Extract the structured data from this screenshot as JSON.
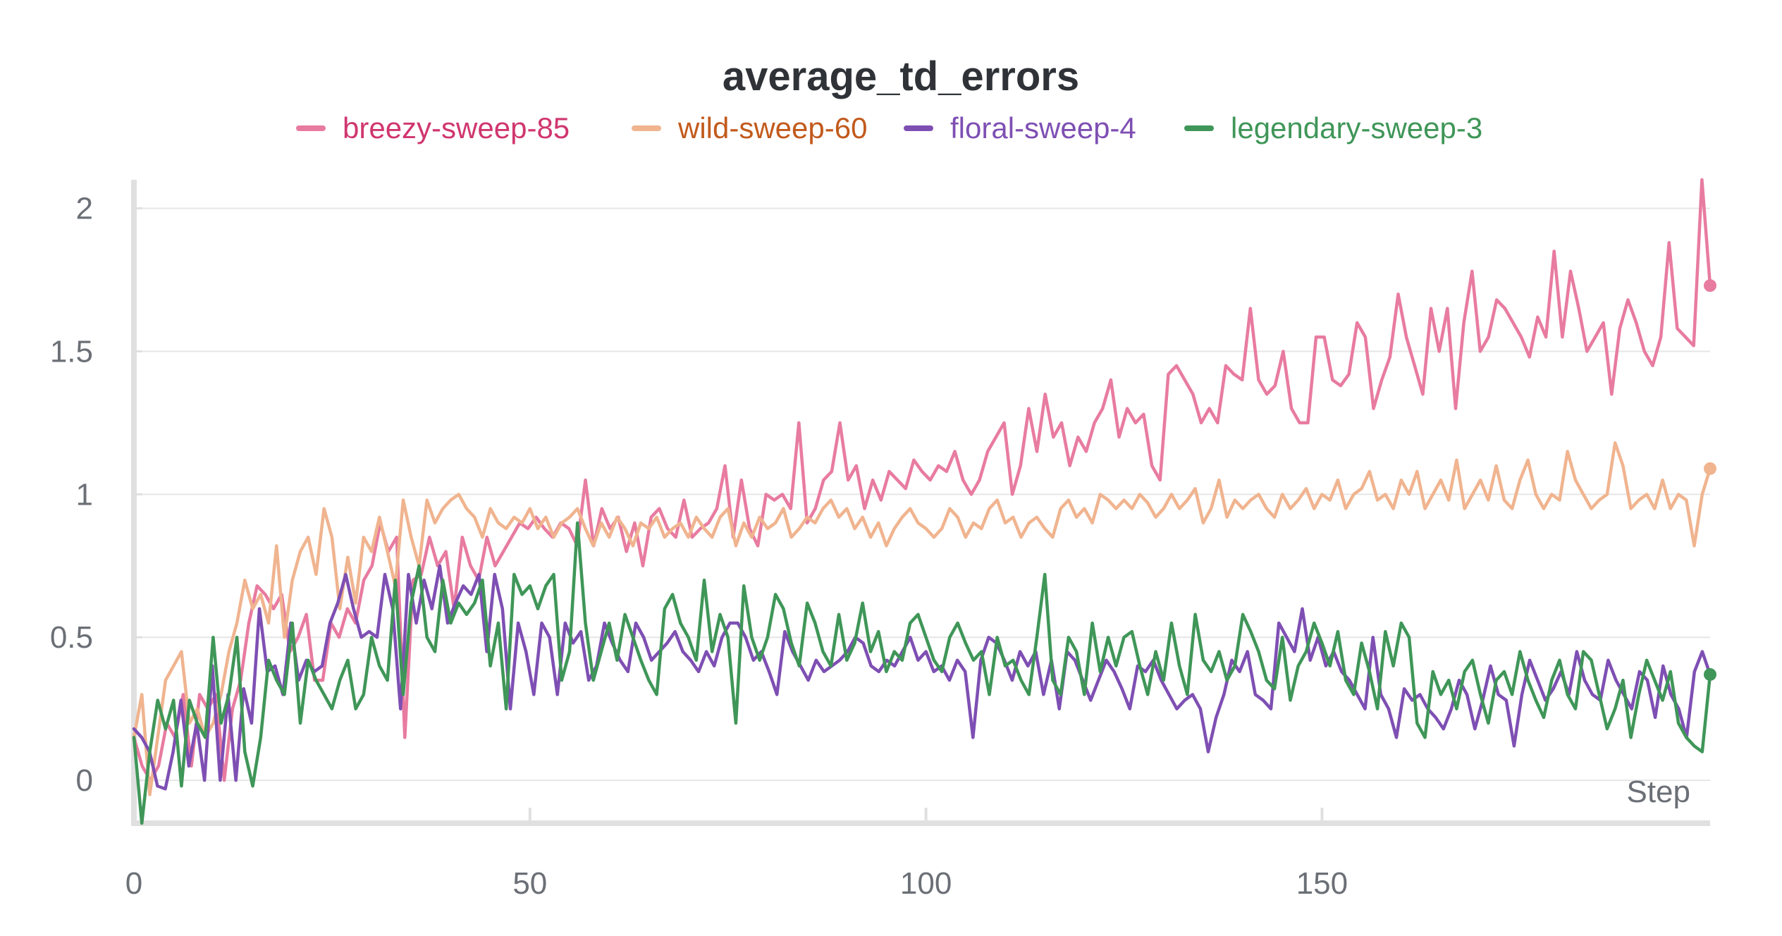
{
  "chart_data": {
    "type": "line",
    "title": "average_td_errors",
    "xlabel": "Step",
    "ylabel": "",
    "xlim": [
      0,
      199
    ],
    "ylim": [
      -0.15,
      2.1
    ],
    "x_ticks": [
      0,
      50,
      100,
      150
    ],
    "y_ticks": [
      0,
      0.5,
      1,
      1.5,
      2
    ],
    "x_tick_labels": [
      "0",
      "50",
      "100",
      "150"
    ],
    "y_tick_labels": [
      "0",
      "0.5",
      "1",
      "1.5",
      "2"
    ],
    "grid": true,
    "legend": "top-center",
    "series": [
      {
        "name": "breezy-sweep-85",
        "color": "#e87ba0",
        "label_color": "#d0366f",
        "marker_end": true,
        "values": [
          0.15,
          0.05,
          0.0,
          0.05,
          0.2,
          0.15,
          0.3,
          0.05,
          0.3,
          0.25,
          0.3,
          0.0,
          0.25,
          0.35,
          0.55,
          0.68,
          0.65,
          0.6,
          0.65,
          0.45,
          0.5,
          0.58,
          0.35,
          0.35,
          0.55,
          0.5,
          0.6,
          0.55,
          0.7,
          0.75,
          0.9,
          0.8,
          0.85,
          0.15,
          0.7,
          0.72,
          0.85,
          0.75,
          0.8,
          0.6,
          0.85,
          0.75,
          0.7,
          0.85,
          0.75,
          0.8,
          0.85,
          0.9,
          0.88,
          0.92,
          0.88,
          0.85,
          0.9,
          0.88,
          0.82,
          1.05,
          0.82,
          0.95,
          0.88,
          0.92,
          0.8,
          0.9,
          0.75,
          0.92,
          0.95,
          0.88,
          0.85,
          0.98,
          0.85,
          0.88,
          0.9,
          0.95,
          1.1,
          0.85,
          1.05,
          0.88,
          0.82,
          1.0,
          0.98,
          1.0,
          0.95,
          1.25,
          0.9,
          0.95,
          1.05,
          1.08,
          1.25,
          1.05,
          1.1,
          0.95,
          1.05,
          0.98,
          1.08,
          1.05,
          1.02,
          1.12,
          1.08,
          1.05,
          1.1,
          1.08,
          1.15,
          1.05,
          1.0,
          1.05,
          1.15,
          1.2,
          1.25,
          1.0,
          1.1,
          1.3,
          1.15,
          1.35,
          1.2,
          1.25,
          1.1,
          1.2,
          1.15,
          1.25,
          1.3,
          1.4,
          1.2,
          1.3,
          1.25,
          1.28,
          1.1,
          1.05,
          1.42,
          1.45,
          1.4,
          1.35,
          1.25,
          1.3,
          1.25,
          1.45,
          1.42,
          1.4,
          1.65,
          1.4,
          1.35,
          1.38,
          1.5,
          1.3,
          1.25,
          1.25,
          1.55,
          1.55,
          1.4,
          1.38,
          1.42,
          1.6,
          1.55,
          1.3,
          1.4,
          1.48,
          1.7,
          1.55,
          1.45,
          1.35,
          1.65,
          1.5,
          1.65,
          1.3,
          1.6,
          1.78,
          1.5,
          1.55,
          1.68,
          1.65,
          1.6,
          1.55,
          1.48,
          1.62,
          1.55,
          1.85,
          1.55,
          1.78,
          1.65,
          1.5,
          1.55,
          1.6,
          1.35,
          1.58,
          1.68,
          1.6,
          1.5,
          1.45,
          1.55,
          1.88,
          1.58,
          1.55,
          1.52,
          2.1,
          1.73
        ],
        "last_value": 1.73
      },
      {
        "name": "wild-sweep-60",
        "color": "#f0b48f",
        "label_color": "#c25a1c",
        "marker_end": true,
        "values": [
          0.15,
          0.3,
          -0.05,
          0.15,
          0.35,
          0.4,
          0.45,
          0.2,
          0.25,
          0.15,
          0.2,
          0.3,
          0.45,
          0.55,
          0.7,
          0.6,
          0.65,
          0.55,
          0.82,
          0.5,
          0.7,
          0.8,
          0.85,
          0.72,
          0.95,
          0.85,
          0.6,
          0.78,
          0.62,
          0.85,
          0.8,
          0.92,
          0.8,
          0.68,
          0.98,
          0.85,
          0.75,
          0.98,
          0.9,
          0.95,
          0.98,
          1.0,
          0.95,
          0.92,
          0.85,
          0.95,
          0.9,
          0.88,
          0.92,
          0.9,
          0.95,
          0.88,
          0.92,
          0.85,
          0.9,
          0.92,
          0.95,
          0.88,
          0.82,
          0.9,
          0.85,
          0.92,
          0.88,
          0.82,
          0.9,
          0.88,
          0.92,
          0.85,
          0.88,
          0.9,
          0.85,
          0.92,
          0.88,
          0.85,
          0.92,
          0.95,
          0.82,
          0.9,
          0.85,
          0.92,
          0.88,
          0.9,
          0.95,
          0.85,
          0.88,
          0.92,
          0.9,
          0.95,
          0.98,
          0.92,
          0.95,
          0.88,
          0.92,
          0.85,
          0.9,
          0.82,
          0.88,
          0.92,
          0.95,
          0.9,
          0.88,
          0.85,
          0.88,
          0.95,
          0.92,
          0.85,
          0.9,
          0.88,
          0.95,
          0.98,
          0.9,
          0.92,
          0.85,
          0.9,
          0.92,
          0.88,
          0.85,
          0.95,
          0.98,
          0.92,
          0.95,
          0.9,
          1.0,
          0.98,
          0.95,
          0.98,
          0.95,
          1.0,
          0.97,
          0.92,
          0.95,
          1.0,
          0.95,
          0.98,
          1.02,
          0.9,
          0.95,
          1.05,
          0.92,
          0.98,
          0.95,
          0.98,
          1.0,
          0.95,
          0.92,
          1.0,
          0.95,
          0.98,
          1.02,
          0.95,
          1.0,
          0.98,
          1.05,
          0.95,
          1.0,
          1.02,
          1.08,
          0.98,
          1.0,
          0.95,
          1.05,
          1.0,
          1.08,
          0.95,
          1.0,
          1.05,
          0.98,
          1.12,
          0.95,
          1.0,
          1.05,
          0.98,
          1.1,
          0.98,
          0.95,
          1.05,
          1.12,
          1.0,
          0.95,
          1.0,
          0.98,
          1.15,
          1.05,
          1.0,
          0.95,
          0.98,
          1.0,
          1.18,
          1.1,
          0.95,
          0.98,
          1.0,
          0.95,
          1.05,
          0.95,
          1.0,
          0.98,
          0.82,
          1.0,
          1.09
        ],
        "last_value": 1.09
      },
      {
        "name": "floral-sweep-4",
        "color": "#7e4fb3",
        "label_color": "#7e4fb3",
        "marker_end": false,
        "values": [
          0.18,
          0.15,
          0.1,
          -0.02,
          -0.03,
          0.1,
          0.28,
          0.05,
          0.2,
          0.0,
          0.4,
          0.0,
          0.3,
          0.0,
          0.32,
          0.2,
          0.6,
          0.38,
          0.4,
          0.3,
          0.55,
          0.35,
          0.42,
          0.38,
          0.4,
          0.55,
          0.62,
          0.72,
          0.6,
          0.5,
          0.52,
          0.5,
          0.72,
          0.6,
          0.25,
          0.72,
          0.55,
          0.7,
          0.6,
          0.75,
          0.55,
          0.62,
          0.68,
          0.65,
          0.72,
          0.45,
          0.72,
          0.6,
          0.25,
          0.55,
          0.45,
          0.3,
          0.55,
          0.5,
          0.3,
          0.55,
          0.48,
          0.52,
          0.35,
          0.4,
          0.55,
          0.48,
          0.42,
          0.38,
          0.55,
          0.5,
          0.42,
          0.45,
          0.48,
          0.52,
          0.45,
          0.42,
          0.38,
          0.45,
          0.4,
          0.5,
          0.55,
          0.55,
          0.5,
          0.42,
          0.45,
          0.38,
          0.3,
          0.52,
          0.45,
          0.4,
          0.35,
          0.42,
          0.38,
          0.4,
          0.42,
          0.45,
          0.5,
          0.48,
          0.4,
          0.38,
          0.42,
          0.4,
          0.45,
          0.5,
          0.42,
          0.45,
          0.38,
          0.4,
          0.35,
          0.42,
          0.38,
          0.15,
          0.42,
          0.5,
          0.48,
          0.42,
          0.35,
          0.45,
          0.4,
          0.45,
          0.3,
          0.42,
          0.25,
          0.45,
          0.42,
          0.35,
          0.28,
          0.35,
          0.42,
          0.38,
          0.32,
          0.25,
          0.4,
          0.38,
          0.42,
          0.35,
          0.3,
          0.25,
          0.28,
          0.3,
          0.25,
          0.1,
          0.22,
          0.3,
          0.42,
          0.38,
          0.45,
          0.3,
          0.28,
          0.25,
          0.55,
          0.5,
          0.45,
          0.6,
          0.42,
          0.5,
          0.4,
          0.45,
          0.38,
          0.35,
          0.3,
          0.25,
          0.5,
          0.3,
          0.25,
          0.15,
          0.32,
          0.28,
          0.3,
          0.25,
          0.22,
          0.18,
          0.25,
          0.35,
          0.3,
          0.18,
          0.28,
          0.4,
          0.3,
          0.28,
          0.12,
          0.3,
          0.42,
          0.35,
          0.28,
          0.32,
          0.38,
          0.3,
          0.45,
          0.35,
          0.3,
          0.28,
          0.42,
          0.35,
          0.3,
          0.25,
          0.38,
          0.35,
          0.22,
          0.4,
          0.3,
          0.25,
          0.15,
          0.38,
          0.45,
          0.37
        ],
        "last_value": 0.37
      },
      {
        "name": "legendary-sweep-3",
        "color": "#3f9658",
        "label_color": "#3f9658",
        "marker_end": true,
        "values": [
          0.15,
          -0.15,
          0.1,
          0.28,
          0.18,
          0.28,
          -0.02,
          0.28,
          0.2,
          0.15,
          0.5,
          0.2,
          0.3,
          0.5,
          0.1,
          -0.02,
          0.15,
          0.42,
          0.35,
          0.3,
          0.55,
          0.2,
          0.42,
          0.35,
          0.3,
          0.25,
          0.35,
          0.42,
          0.25,
          0.3,
          0.5,
          0.4,
          0.35,
          0.7,
          0.3,
          0.62,
          0.75,
          0.5,
          0.45,
          0.7,
          0.55,
          0.62,
          0.58,
          0.62,
          0.7,
          0.4,
          0.55,
          0.25,
          0.72,
          0.65,
          0.68,
          0.6,
          0.68,
          0.72,
          0.35,
          0.45,
          0.9,
          0.55,
          0.35,
          0.45,
          0.55,
          0.42,
          0.58,
          0.5,
          0.42,
          0.35,
          0.3,
          0.6,
          0.65,
          0.55,
          0.5,
          0.42,
          0.7,
          0.45,
          0.58,
          0.5,
          0.2,
          0.68,
          0.5,
          0.42,
          0.5,
          0.65,
          0.6,
          0.48,
          0.4,
          0.62,
          0.55,
          0.45,
          0.4,
          0.58,
          0.42,
          0.48,
          0.62,
          0.45,
          0.52,
          0.38,
          0.45,
          0.42,
          0.55,
          0.58,
          0.5,
          0.42,
          0.38,
          0.5,
          0.55,
          0.48,
          0.42,
          0.45,
          0.3,
          0.5,
          0.4,
          0.42,
          0.35,
          0.3,
          0.5,
          0.72,
          0.35,
          0.3,
          0.5,
          0.45,
          0.3,
          0.55,
          0.38,
          0.5,
          0.4,
          0.5,
          0.52,
          0.4,
          0.3,
          0.45,
          0.35,
          0.55,
          0.4,
          0.3,
          0.58,
          0.42,
          0.38,
          0.45,
          0.35,
          0.4,
          0.58,
          0.52,
          0.45,
          0.35,
          0.32,
          0.5,
          0.28,
          0.4,
          0.45,
          0.55,
          0.48,
          0.4,
          0.52,
          0.35,
          0.3,
          0.48,
          0.38,
          0.25,
          0.52,
          0.4,
          0.55,
          0.5,
          0.2,
          0.15,
          0.38,
          0.3,
          0.35,
          0.25,
          0.38,
          0.42,
          0.3,
          0.2,
          0.35,
          0.38,
          0.3,
          0.45,
          0.35,
          0.28,
          0.22,
          0.35,
          0.42,
          0.3,
          0.25,
          0.45,
          0.42,
          0.3,
          0.18,
          0.25,
          0.35,
          0.15,
          0.3,
          0.42,
          0.35,
          0.28,
          0.38,
          0.2,
          0.15,
          0.12,
          0.1,
          0.37
        ],
        "last_value": 0.37
      }
    ]
  }
}
